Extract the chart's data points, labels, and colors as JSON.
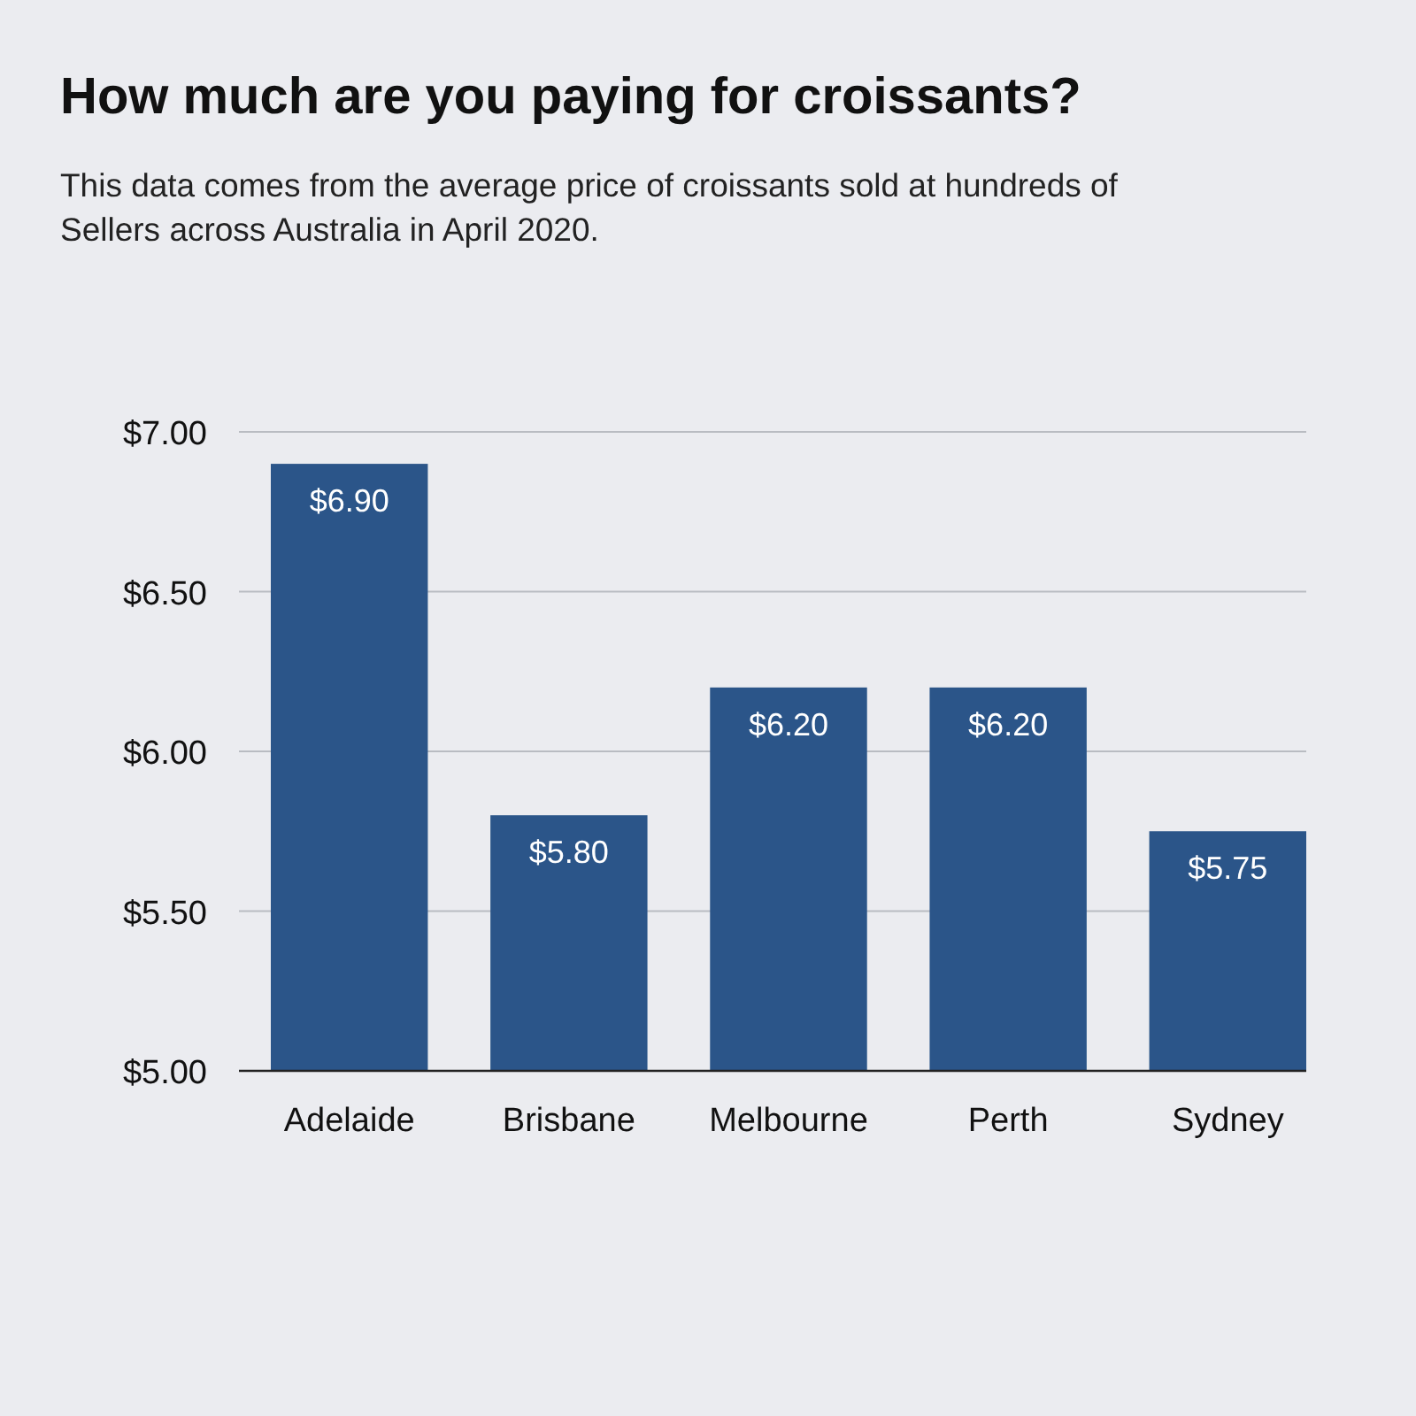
{
  "chart_data": {
    "type": "bar",
    "title": "How much are you paying for croissants?",
    "subtitle": "This data comes from the average price of croissants sold at hundreds of Sellers across Australia in April 2020.",
    "categories": [
      "Adelaide",
      "Brisbane",
      "Melbourne",
      "Perth",
      "Sydney"
    ],
    "values": [
      6.9,
      5.8,
      6.2,
      6.2,
      5.75
    ],
    "value_labels": [
      "$6.90",
      "$5.80",
      "$6.20",
      "$6.20",
      "$5.75"
    ],
    "color": "#2b5589",
    "ylim": [
      5,
      7
    ],
    "yticks": [
      {
        "value": 5,
        "label": "$5.00"
      },
      {
        "value": 5.5,
        "label": "$5.50"
      },
      {
        "value": 6,
        "label": "$6.00"
      },
      {
        "value": 6.5,
        "label": "$6.50"
      },
      {
        "value": 7,
        "label": "$7.00"
      }
    ],
    "grid": "y"
  }
}
